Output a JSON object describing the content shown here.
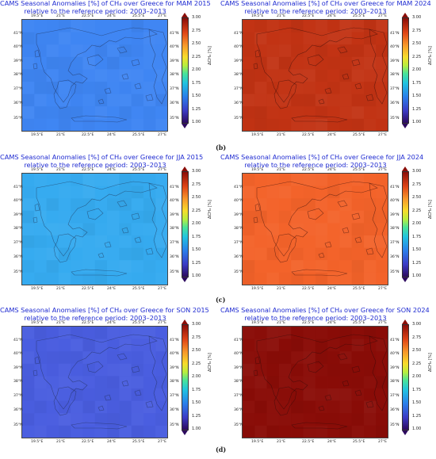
{
  "colorbar": {
    "ticks": [
      "3.00",
      "2.75",
      "2.50",
      "2.25",
      "2.00",
      "1.75",
      "1.50",
      "1.25",
      "1.00"
    ],
    "label": "ΔCH₄ [%]",
    "range": [
      1.0,
      3.0
    ]
  },
  "axes": {
    "lon_ticks": [
      "19.5°E",
      "21°E",
      "22.5°E",
      "24°E",
      "25.5°E",
      "27°E"
    ],
    "lat_ticks": [
      "41°N",
      "40°N",
      "39°N",
      "38°N",
      "37°N",
      "36°N",
      "35°N"
    ]
  },
  "row_labels": [
    "(b)",
    "(c)",
    "(d)"
  ],
  "chart_data": [
    {
      "type": "heatmap",
      "title": "CAMS Seasonal Anomalies [%] of CH₄ over Greece for MAM 2015",
      "subtitle": "relative to the reference period: 2003–2013",
      "season": "MAM",
      "year": 2015,
      "anomaly_approx": 1.45,
      "color": "#3f86f3",
      "colorbar_label": "ΔCH₄ [%]",
      "clim": [
        1.0,
        3.0
      ]
    },
    {
      "type": "heatmap",
      "title": "CAMS Seasonal Anomalies [%] of CH₄ over Greece for MAM 2024",
      "subtitle": "relative to the reference period: 2003–2013",
      "season": "MAM",
      "year": 2024,
      "anomaly_approx": 2.9,
      "color": "#c23314",
      "colorbar_label": "ΔCH₄ [%]",
      "clim": [
        1.0,
        3.0
      ]
    },
    {
      "type": "heatmap",
      "title": "CAMS Seasonal Anomalies [%] of CH₄ over Greece for JJA 2015",
      "subtitle": "relative to the reference period: 2003–2013",
      "season": "JJA",
      "year": 2015,
      "anomaly_approx": 1.55,
      "color": "#36abf0",
      "colorbar_label": "ΔCH₄ [%]",
      "clim": [
        1.0,
        3.0
      ]
    },
    {
      "type": "heatmap",
      "title": "CAMS Seasonal Anomalies [%] of CH₄ over Greece for JJA 2024",
      "subtitle": "relative to the reference period: 2003–2013",
      "season": "JJA",
      "year": 2024,
      "anomaly_approx": 2.7,
      "color": "#f3632a",
      "colorbar_label": "ΔCH₄ [%]",
      "clim": [
        1.0,
        3.0
      ]
    },
    {
      "type": "heatmap",
      "title": "CAMS Seasonal Anomalies [%] of CH₄ over Greece for SON 2015",
      "subtitle": "relative to the reference period: 2003–2013",
      "season": "SON",
      "year": 2015,
      "anomaly_approx": 1.2,
      "color": "#4a5ee0",
      "colorbar_label": "ΔCH₄ [%]",
      "clim": [
        1.0,
        3.0
      ]
    },
    {
      "type": "heatmap",
      "title": "CAMS Seasonal Anomalies [%] of CH₄ over Greece for SON 2024",
      "subtitle": "relative to the reference period: 2003–2013",
      "season": "SON",
      "year": 2024,
      "anomaly_approx": 3.0,
      "color": "#8a0d08",
      "colorbar_label": "ΔCH₄ [%]",
      "clim": [
        1.0,
        3.0
      ]
    }
  ]
}
